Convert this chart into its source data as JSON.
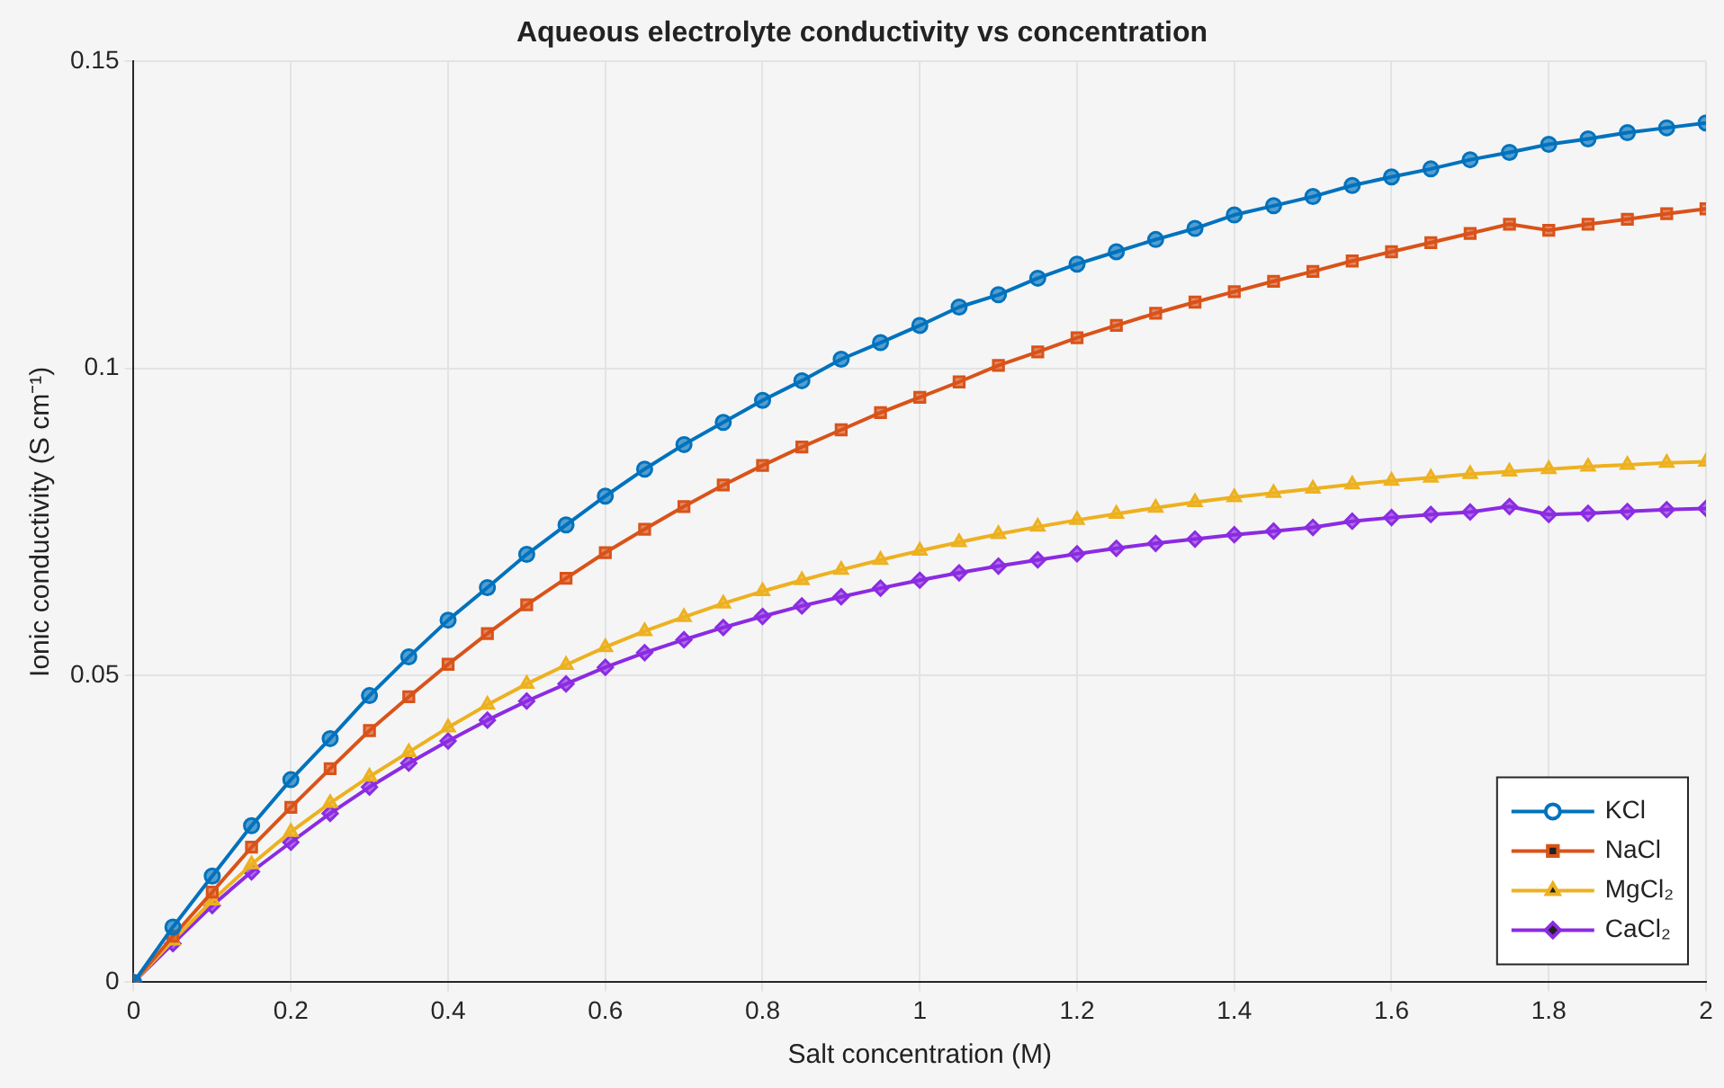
{
  "chart_data": {
    "type": "line",
    "title": "Aqueous electrolyte conductivity vs concentration",
    "xlabel": "Salt concentration (M)",
    "ylabel": "Ionic conductivity (S cm⁻¹)",
    "x": [
      0,
      0.05,
      0.1,
      0.15,
      0.2,
      0.25,
      0.3,
      0.35,
      0.4,
      0.45,
      0.5,
      0.55,
      0.6,
      0.65,
      0.7,
      0.75,
      0.8,
      0.85,
      0.9,
      0.95,
      1,
      1.05,
      1.1,
      1.15,
      1.2,
      1.25,
      1.3,
      1.35,
      1.4,
      1.45,
      1.5,
      1.55,
      1.6,
      1.65,
      1.7,
      1.75,
      1.8,
      1.85,
      1.9,
      1.95,
      2
    ],
    "series": [
      {
        "name": "KCl",
        "color": "#0072bd",
        "marker": "circle",
        "values": [
          0,
          0.009,
          0.0173,
          0.0255,
          0.033,
          0.0397,
          0.0467,
          0.053,
          0.059,
          0.0643,
          0.0697,
          0.0745,
          0.0792,
          0.0836,
          0.0876,
          0.0912,
          0.0948,
          0.098,
          0.1015,
          0.1042,
          0.107,
          0.11,
          0.112,
          0.1147,
          0.117,
          0.119,
          0.121,
          0.1228,
          0.125,
          0.1265,
          0.128,
          0.1298,
          0.1312,
          0.1325,
          0.134,
          0.1352,
          0.1365,
          0.1374,
          0.1384,
          0.1392,
          0.14
        ]
      },
      {
        "name": "NaCl",
        "color": "#d95319",
        "marker": "square",
        "values": [
          0,
          0.0075,
          0.0147,
          0.022,
          0.0285,
          0.0348,
          0.041,
          0.0465,
          0.0518,
          0.0568,
          0.0615,
          0.0658,
          0.07,
          0.0738,
          0.0775,
          0.081,
          0.0842,
          0.0872,
          0.09,
          0.0928,
          0.0953,
          0.0978,
          0.1005,
          0.1027,
          0.105,
          0.107,
          0.109,
          0.1108,
          0.1125,
          0.1142,
          0.1158,
          0.1175,
          0.119,
          0.1205,
          0.122,
          0.1235,
          0.1225,
          0.1235,
          0.1243,
          0.1252,
          0.126
        ]
      },
      {
        "name": "MgCl₂",
        "color": "#edb120",
        "marker": "triangle",
        "values": [
          0,
          0.0068,
          0.0133,
          0.0192,
          0.0245,
          0.0292,
          0.0335,
          0.0375,
          0.0415,
          0.0452,
          0.0486,
          0.0517,
          0.0546,
          0.0572,
          0.0595,
          0.0617,
          0.0637,
          0.0655,
          0.0672,
          0.0688,
          0.0703,
          0.0717,
          0.073,
          0.0742,
          0.0753,
          0.0763,
          0.0773,
          0.0782,
          0.079,
          0.0797,
          0.0804,
          0.0811,
          0.0817,
          0.0822,
          0.0828,
          0.0832,
          0.0836,
          0.084,
          0.0843,
          0.0846,
          0.0848
        ]
      },
      {
        "name": "CaCl₂",
        "color": "#8b2be2",
        "marker": "diamond",
        "values": [
          0,
          0.0063,
          0.0125,
          0.018,
          0.0228,
          0.0275,
          0.0318,
          0.0357,
          0.0393,
          0.0427,
          0.0458,
          0.0486,
          0.0513,
          0.0537,
          0.0558,
          0.0578,
          0.0596,
          0.0613,
          0.0628,
          0.0642,
          0.0655,
          0.0667,
          0.0678,
          0.0688,
          0.0698,
          0.0707,
          0.0715,
          0.0722,
          0.0729,
          0.0735,
          0.0741,
          0.0751,
          0.0757,
          0.0762,
          0.0766,
          0.0775,
          0.0762,
          0.0764,
          0.0767,
          0.077,
          0.0772
        ]
      }
    ],
    "xlim": [
      0,
      2
    ],
    "xticks": [
      0,
      0.2,
      0.4,
      0.6,
      0.8,
      1,
      1.2,
      1.4,
      1.6,
      1.8,
      2
    ],
    "ylim": [
      0,
      0.15
    ],
    "yticks": [
      0,
      0.05,
      0.1,
      0.15
    ],
    "grid": true,
    "legend": "bottom right",
    "line_style": "solid"
  }
}
